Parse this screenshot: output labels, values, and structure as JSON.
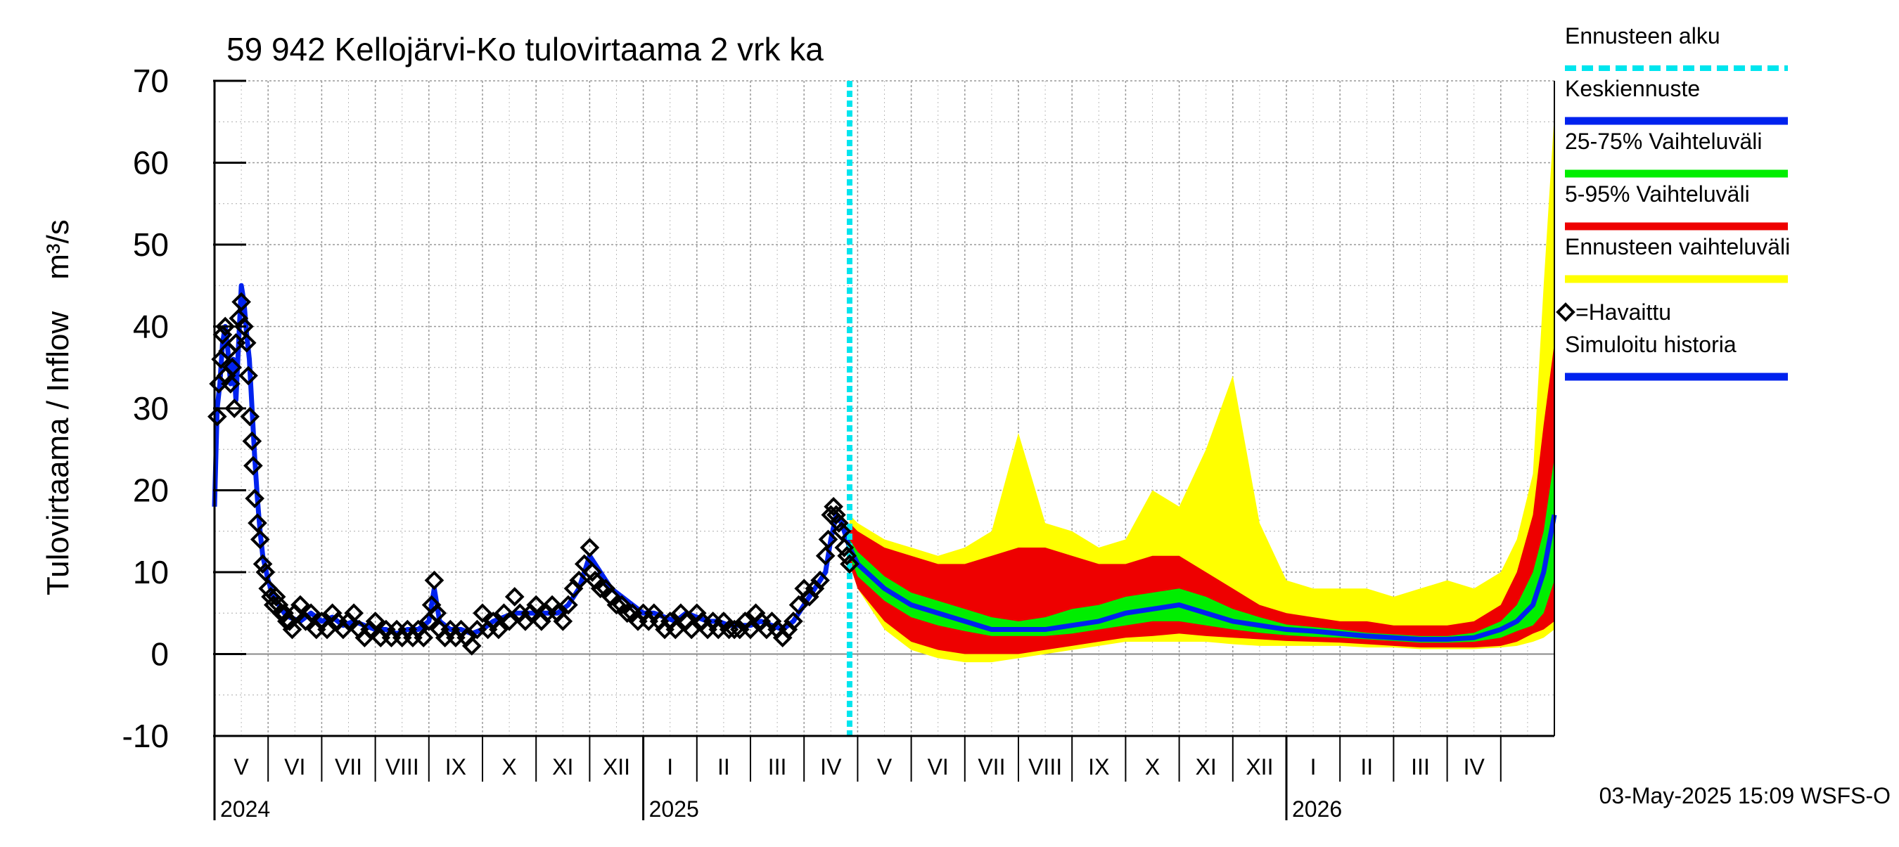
{
  "chart_data": {
    "type": "area",
    "title": "59 942 Kellojärvi-Ko tulovirtaama 2 vrk ka",
    "ylabel": "Tulovirtaama / Inflow",
    "yunit": "m³/s",
    "ylim": [
      -10,
      70
    ],
    "yticks": [
      -10,
      0,
      10,
      20,
      30,
      40,
      50,
      60,
      70
    ],
    "x_start": 0,
    "x_end": 25,
    "forecast_start": 11.85,
    "months": [
      {
        "label": "V",
        "start": 0
      },
      {
        "label": "VI",
        "start": 1
      },
      {
        "label": "VII",
        "start": 2
      },
      {
        "label": "VIII",
        "start": 3
      },
      {
        "label": "IX",
        "start": 4
      },
      {
        "label": "X",
        "start": 5
      },
      {
        "label": "XI",
        "start": 6
      },
      {
        "label": "XII",
        "start": 7
      },
      {
        "label": "I",
        "start": 8
      },
      {
        "label": "II",
        "start": 9
      },
      {
        "label": "III",
        "start": 10
      },
      {
        "label": "IV",
        "start": 11
      },
      {
        "label": "V",
        "start": 12
      },
      {
        "label": "VI",
        "start": 13
      },
      {
        "label": "VII",
        "start": 14
      },
      {
        "label": "VIII",
        "start": 15
      },
      {
        "label": "IX",
        "start": 16
      },
      {
        "label": "X",
        "start": 17
      },
      {
        "label": "XI",
        "start": 18
      },
      {
        "label": "XII",
        "start": 19
      },
      {
        "label": "I",
        "start": 20
      },
      {
        "label": "II",
        "start": 21
      },
      {
        "label": "III",
        "start": 22
      },
      {
        "label": "IV",
        "start": 23
      },
      {
        "label": "",
        "start": 24
      }
    ],
    "years": [
      {
        "label": "2024",
        "at": 0
      },
      {
        "label": "2025",
        "at": 8
      },
      {
        "label": "2026",
        "at": 20
      }
    ],
    "legend": [
      {
        "label": "Ennusteen alku",
        "color": "#00e5ee",
        "style": "dashed"
      },
      {
        "label": "Keskiennuste",
        "color": "#0022ee",
        "style": "solid"
      },
      {
        "label": "25-75% Vaihteluväli",
        "color": "#00ee00",
        "style": "solid"
      },
      {
        "label": "5-95% Vaihteluväli",
        "color": "#ee0000",
        "style": "solid"
      },
      {
        "label": "Ennusteen vaihteluväli",
        "color": "#ffff00",
        "style": "solid"
      },
      {
        "label": "=Havaittu",
        "color": "#000000",
        "style": "diamond"
      },
      {
        "label": "Simuloitu historia",
        "color": "#0022ee",
        "style": "solid"
      }
    ],
    "observed_simulated": [
      [
        0.0,
        18
      ],
      [
        0.05,
        30
      ],
      [
        0.1,
        33
      ],
      [
        0.15,
        38
      ],
      [
        0.2,
        40
      ],
      [
        0.25,
        37
      ],
      [
        0.3,
        33
      ],
      [
        0.35,
        36
      ],
      [
        0.4,
        31
      ],
      [
        0.45,
        38
      ],
      [
        0.5,
        45
      ],
      [
        0.55,
        43
      ],
      [
        0.6,
        39
      ],
      [
        0.65,
        36
      ],
      [
        0.7,
        30
      ],
      [
        0.75,
        24
      ],
      [
        0.8,
        19
      ],
      [
        0.85,
        15
      ],
      [
        0.9,
        12
      ],
      [
        1.0,
        9
      ],
      [
        1.1,
        7
      ],
      [
        1.2,
        6
      ],
      [
        1.3,
        5
      ],
      [
        1.4,
        4.5
      ],
      [
        1.6,
        4
      ],
      [
        1.8,
        5
      ],
      [
        2.0,
        4
      ],
      [
        2.2,
        4.5
      ],
      [
        2.4,
        3.5
      ],
      [
        2.6,
        4
      ],
      [
        2.8,
        3.5
      ],
      [
        3.0,
        3
      ],
      [
        3.2,
        3
      ],
      [
        3.4,
        2.5
      ],
      [
        3.6,
        3
      ],
      [
        3.8,
        3
      ],
      [
        4.0,
        4
      ],
      [
        4.1,
        8
      ],
      [
        4.2,
        4
      ],
      [
        4.4,
        3
      ],
      [
        4.6,
        3
      ],
      [
        4.8,
        2.5
      ],
      [
        5.0,
        3
      ],
      [
        5.2,
        4
      ],
      [
        5.4,
        4.5
      ],
      [
        5.6,
        5
      ],
      [
        5.8,
        5
      ],
      [
        6.0,
        5
      ],
      [
        6.2,
        5
      ],
      [
        6.4,
        5
      ],
      [
        6.6,
        6
      ],
      [
        6.8,
        8
      ],
      [
        7.0,
        12
      ],
      [
        7.2,
        10
      ],
      [
        7.4,
        8
      ],
      [
        7.6,
        7
      ],
      [
        7.8,
        6
      ],
      [
        8.0,
        5
      ],
      [
        8.2,
        5
      ],
      [
        8.4,
        4.5
      ],
      [
        8.6,
        4
      ],
      [
        8.8,
        5
      ],
      [
        9.0,
        4.5
      ],
      [
        9.2,
        4
      ],
      [
        9.4,
        4
      ],
      [
        9.6,
        3.5
      ],
      [
        9.8,
        3.5
      ],
      [
        10.0,
        3.5
      ],
      [
        10.2,
        4
      ],
      [
        10.4,
        3.5
      ],
      [
        10.6,
        3
      ],
      [
        10.8,
        4
      ],
      [
        11.0,
        6
      ],
      [
        11.2,
        8
      ],
      [
        11.4,
        10
      ],
      [
        11.5,
        14
      ],
      [
        11.6,
        17
      ],
      [
        11.7,
        16
      ],
      [
        11.8,
        14
      ],
      [
        11.85,
        13
      ]
    ],
    "observed_points": [
      [
        0.05,
        29
      ],
      [
        0.08,
        33
      ],
      [
        0.12,
        36
      ],
      [
        0.15,
        39
      ],
      [
        0.2,
        40
      ],
      [
        0.22,
        34
      ],
      [
        0.25,
        37
      ],
      [
        0.3,
        33
      ],
      [
        0.33,
        35
      ],
      [
        0.37,
        30
      ],
      [
        0.4,
        38
      ],
      [
        0.45,
        41
      ],
      [
        0.5,
        43
      ],
      [
        0.55,
        40
      ],
      [
        0.6,
        38
      ],
      [
        0.63,
        34
      ],
      [
        0.66,
        29
      ],
      [
        0.7,
        26
      ],
      [
        0.72,
        23
      ],
      [
        0.75,
        19
      ],
      [
        0.8,
        16
      ],
      [
        0.85,
        14
      ],
      [
        0.9,
        11
      ],
      [
        0.95,
        10
      ],
      [
        1.0,
        8
      ],
      [
        1.05,
        7
      ],
      [
        1.1,
        6
      ],
      [
        1.15,
        7
      ],
      [
        1.2,
        6
      ],
      [
        1.25,
        5
      ],
      [
        1.3,
        5
      ],
      [
        1.35,
        4
      ],
      [
        1.4,
        4
      ],
      [
        1.45,
        3
      ],
      [
        1.5,
        5
      ],
      [
        1.6,
        6
      ],
      [
        1.7,
        4
      ],
      [
        1.8,
        5
      ],
      [
        1.9,
        3
      ],
      [
        2.0,
        4
      ],
      [
        2.1,
        3
      ],
      [
        2.2,
        5
      ],
      [
        2.3,
        4
      ],
      [
        2.4,
        3
      ],
      [
        2.5,
        4
      ],
      [
        2.6,
        5
      ],
      [
        2.7,
        3
      ],
      [
        2.8,
        2
      ],
      [
        2.9,
        3
      ],
      [
        3.0,
        4
      ],
      [
        3.1,
        2
      ],
      [
        3.2,
        3
      ],
      [
        3.3,
        2
      ],
      [
        3.4,
        3
      ],
      [
        3.5,
        2
      ],
      [
        3.6,
        3
      ],
      [
        3.7,
        2
      ],
      [
        3.8,
        3
      ],
      [
        3.9,
        2
      ],
      [
        4.0,
        4
      ],
      [
        4.05,
        6
      ],
      [
        4.1,
        9
      ],
      [
        4.15,
        5
      ],
      [
        4.2,
        3
      ],
      [
        4.3,
        2
      ],
      [
        4.4,
        3
      ],
      [
        4.5,
        2
      ],
      [
        4.6,
        3
      ],
      [
        4.7,
        2
      ],
      [
        4.8,
        1
      ],
      [
        4.9,
        3
      ],
      [
        5.0,
        5
      ],
      [
        5.1,
        3
      ],
      [
        5.2,
        4
      ],
      [
        5.3,
        3
      ],
      [
        5.4,
        5
      ],
      [
        5.5,
        4
      ],
      [
        5.6,
        7
      ],
      [
        5.7,
        5
      ],
      [
        5.8,
        4
      ],
      [
        5.9,
        5
      ],
      [
        6.0,
        6
      ],
      [
        6.1,
        4
      ],
      [
        6.2,
        5
      ],
      [
        6.3,
        6
      ],
      [
        6.4,
        5
      ],
      [
        6.5,
        4
      ],
      [
        6.6,
        6
      ],
      [
        6.7,
        8
      ],
      [
        6.8,
        9
      ],
      [
        6.9,
        11
      ],
      [
        7.0,
        13
      ],
      [
        7.05,
        10
      ],
      [
        7.1,
        9
      ],
      [
        7.2,
        8
      ],
      [
        7.3,
        8
      ],
      [
        7.4,
        7
      ],
      [
        7.5,
        6
      ],
      [
        7.6,
        6
      ],
      [
        7.7,
        5
      ],
      [
        7.8,
        5
      ],
      [
        7.9,
        4
      ],
      [
        8.0,
        5
      ],
      [
        8.1,
        4
      ],
      [
        8.2,
        5
      ],
      [
        8.3,
        4
      ],
      [
        8.4,
        3
      ],
      [
        8.5,
        4
      ],
      [
        8.6,
        3
      ],
      [
        8.7,
        5
      ],
      [
        8.8,
        4
      ],
      [
        8.9,
        3
      ],
      [
        9.0,
        5
      ],
      [
        9.1,
        4
      ],
      [
        9.2,
        3
      ],
      [
        9.3,
        4
      ],
      [
        9.4,
        3
      ],
      [
        9.5,
        4
      ],
      [
        9.6,
        3
      ],
      [
        9.7,
        3
      ],
      [
        9.8,
        3
      ],
      [
        9.9,
        4
      ],
      [
        10.0,
        3
      ],
      [
        10.1,
        5
      ],
      [
        10.2,
        4
      ],
      [
        10.3,
        3
      ],
      [
        10.4,
        4
      ],
      [
        10.5,
        3
      ],
      [
        10.6,
        2
      ],
      [
        10.7,
        3
      ],
      [
        10.8,
        4
      ],
      [
        10.9,
        6
      ],
      [
        11.0,
        8
      ],
      [
        11.1,
        7
      ],
      [
        11.2,
        8
      ],
      [
        11.3,
        9
      ],
      [
        11.4,
        12
      ],
      [
        11.45,
        14
      ],
      [
        11.5,
        17
      ],
      [
        11.55,
        18
      ],
      [
        11.6,
        17
      ],
      [
        11.65,
        16
      ],
      [
        11.7,
        15
      ],
      [
        11.75,
        13
      ],
      [
        11.8,
        12
      ],
      [
        11.85,
        11
      ]
    ],
    "forecast": {
      "x": [
        11.85,
        12.0,
        12.5,
        13.0,
        13.5,
        14.0,
        14.5,
        15.0,
        15.5,
        16.0,
        16.5,
        17.0,
        17.5,
        18.0,
        18.5,
        19.0,
        19.5,
        20.0,
        20.5,
        21.0,
        21.5,
        22.0,
        22.5,
        23.0,
        23.5,
        24.0,
        24.3,
        24.6,
        24.8,
        25.0
      ],
      "median": [
        13,
        11,
        8,
        6,
        5,
        4,
        3,
        3,
        3,
        3.5,
        4,
        5,
        5.5,
        6,
        5,
        4,
        3.5,
        3,
        2.8,
        2.5,
        2.2,
        2,
        1.8,
        1.8,
        2,
        3,
        4,
        6,
        10,
        17
      ],
      "p25": [
        12,
        9.5,
        6.5,
        4.5,
        3.5,
        2.8,
        2.2,
        2.2,
        2.2,
        2.5,
        3,
        3.5,
        4,
        4,
        3.5,
        3,
        2.6,
        2.3,
        2.1,
        2,
        1.8,
        1.6,
        1.4,
        1.4,
        1.5,
        2,
        2.8,
        3.5,
        5,
        9
      ],
      "p75": [
        14,
        12.5,
        9.5,
        7.5,
        6.5,
        5.5,
        4.5,
        4,
        4.5,
        5.5,
        6,
        7,
        7.5,
        8,
        7,
        5.5,
        4.5,
        3.6,
        3.3,
        3,
        2.6,
        2.4,
        2.2,
        2.2,
        2.6,
        4,
        6,
        10,
        15,
        24
      ],
      "p5": [
        11,
        8,
        4,
        1.5,
        0.5,
        0,
        0,
        0,
        0.5,
        1,
        1.5,
        2,
        2.2,
        2.5,
        2.2,
        2,
        1.8,
        1.6,
        1.5,
        1.4,
        1.2,
        1,
        0.8,
        0.8,
        0.8,
        1,
        1.5,
        2.5,
        3,
        4
      ],
      "p95": [
        16,
        15,
        13,
        12,
        11,
        11,
        12,
        13,
        13,
        12,
        11,
        11,
        12,
        12,
        10,
        8,
        6,
        5,
        4.5,
        4,
        4,
        3.5,
        3.5,
        3.5,
        4,
        6,
        10,
        17,
        28,
        38
      ],
      "pmin": [
        11,
        8,
        3,
        0.5,
        -0.5,
        -1,
        -1,
        -0.5,
        0,
        0.5,
        1,
        1.5,
        1.5,
        1.5,
        1.5,
        1.2,
        1,
        1,
        1,
        1,
        0.8,
        0.8,
        0.6,
        0.6,
        0.6,
        0.8,
        1,
        1.5,
        2,
        3
      ],
      "pmax": [
        17,
        16,
        14,
        13,
        12,
        13,
        15,
        27,
        16,
        15,
        13,
        14,
        20,
        18,
        25,
        34,
        16,
        9,
        8,
        8,
        8,
        7,
        8,
        9,
        8,
        10,
        14,
        22,
        45,
        66
      ]
    },
    "footer": "03-May-2025 15:09 WSFS-O"
  }
}
